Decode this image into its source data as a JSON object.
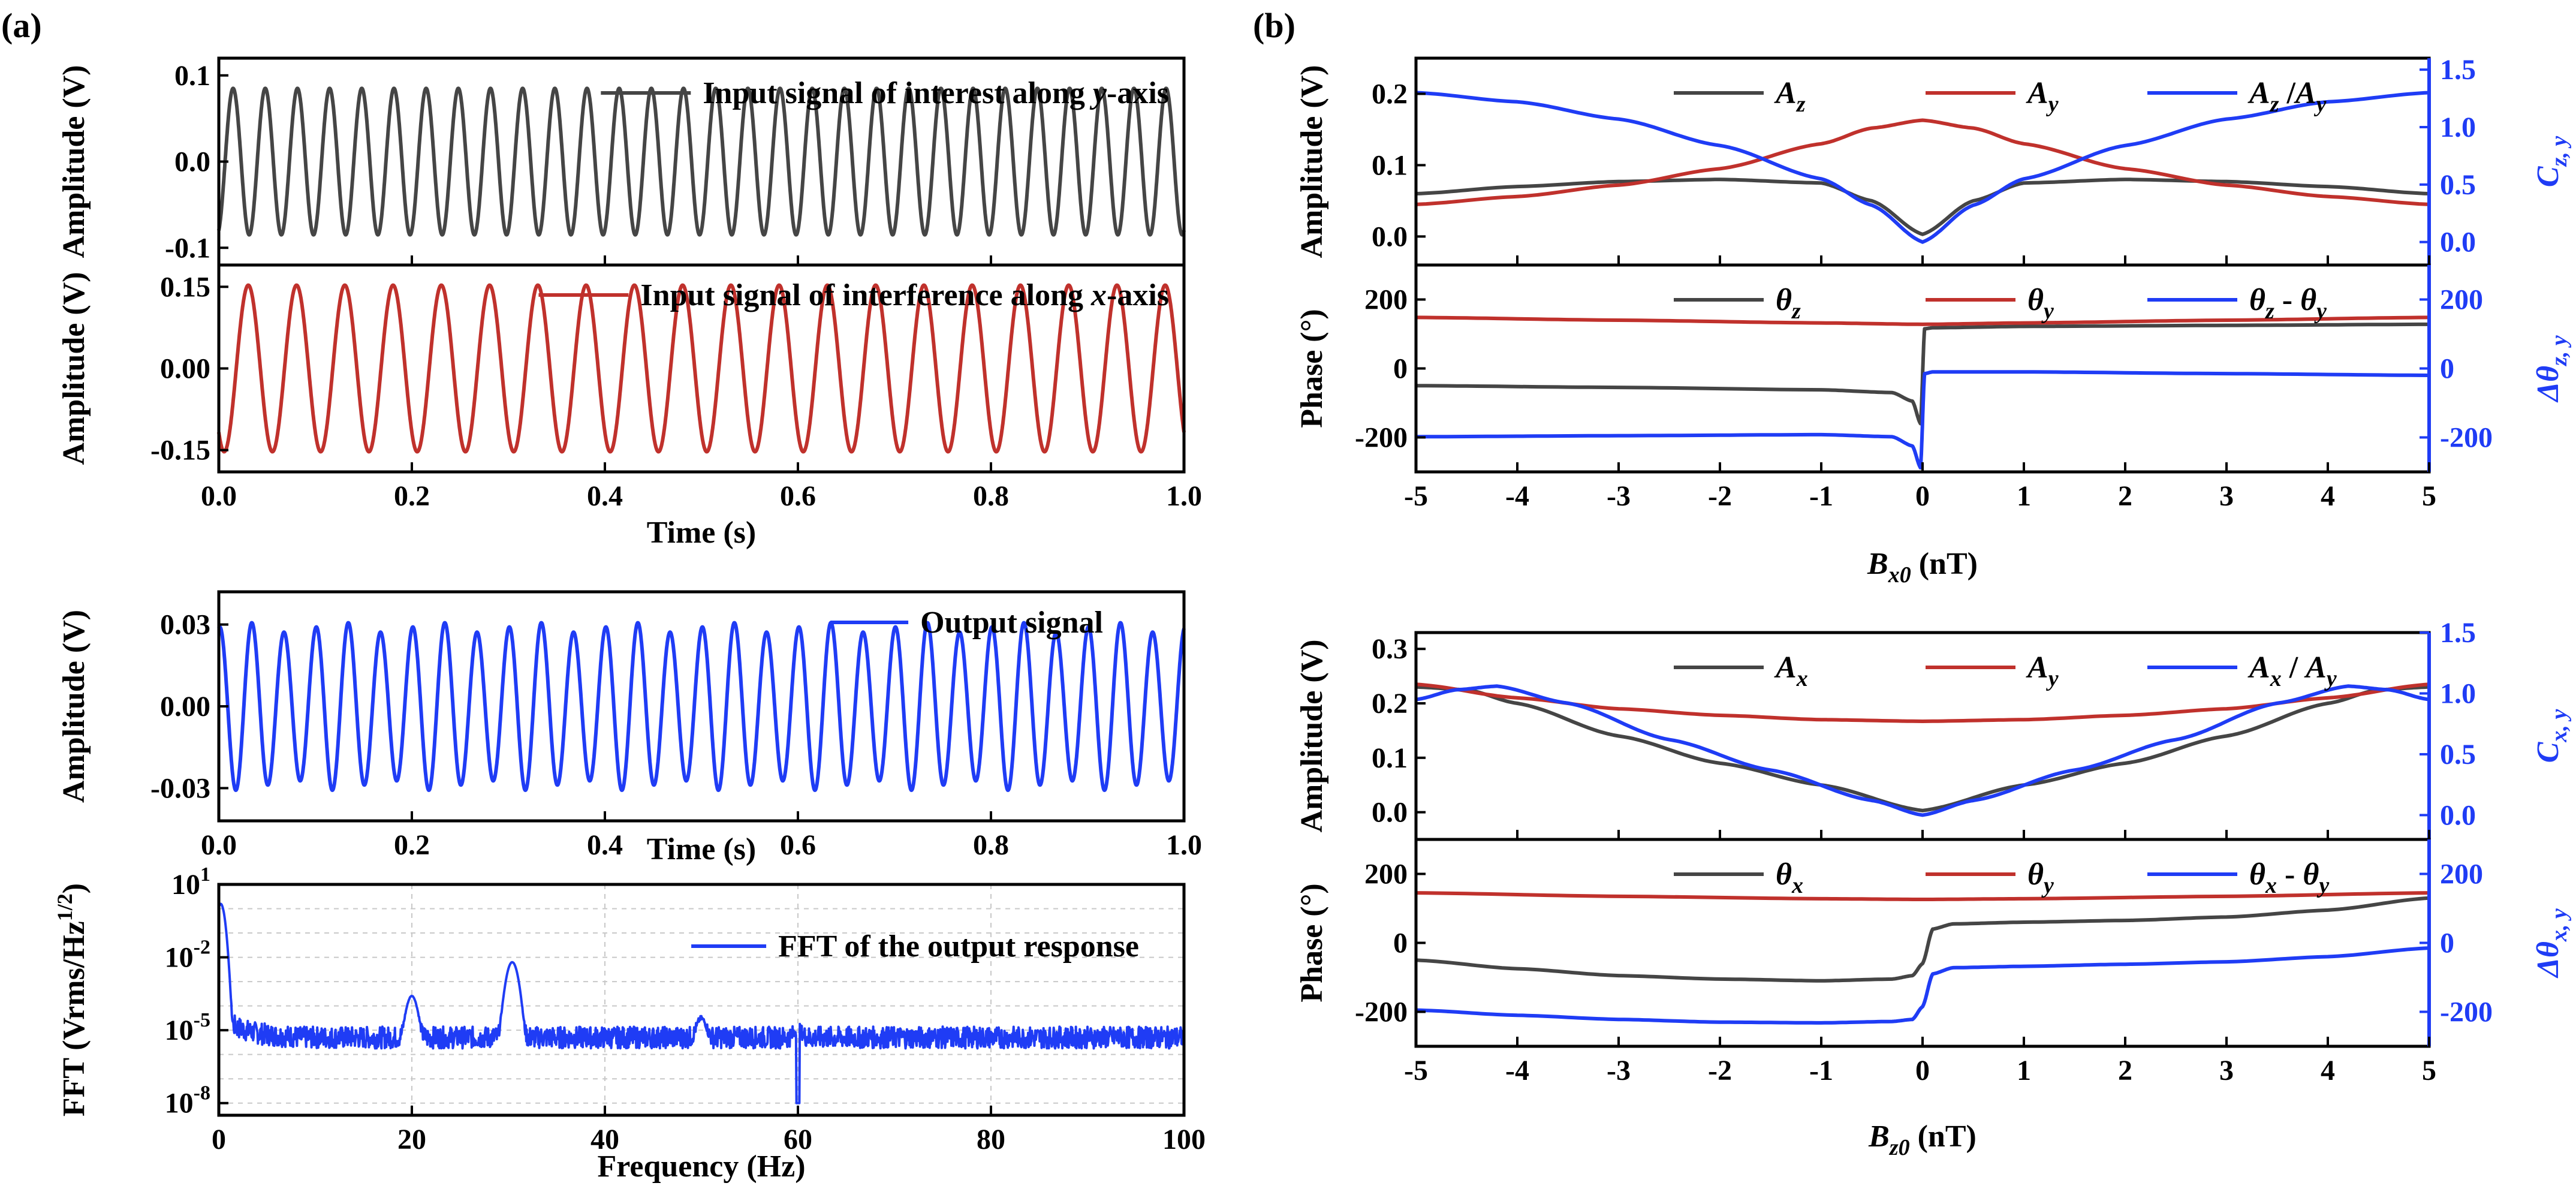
{
  "figure": {
    "panel_a_label": "(a)",
    "panel_b_label": "(b)"
  },
  "colors": {
    "black": "#454545",
    "red": "#c0312c",
    "blue": "#1f3cf5",
    "axis": "#000000",
    "grid": "#c8c8c8"
  },
  "chart_data": [
    {
      "id": "a1",
      "type": "line",
      "title": "",
      "xlabel": "",
      "ylabel": "Amplitude (V)",
      "xlim": [
        0,
        1.0
      ],
      "ylim": [
        -0.12,
        0.12
      ],
      "yticks": [
        -0.1,
        0.0,
        0.1
      ],
      "ytick_labels": [
        "-0.1",
        "0.0",
        "0.1"
      ],
      "series": [
        {
          "name": "Input signal of interest along y-axis",
          "legend_pre": "Input signal of interest along ",
          "legend_var": "y",
          "legend_post": "-axis",
          "color": "black",
          "wave": {
            "amplitude": 0.085,
            "freq_hz": 30,
            "phase_deg": -70
          }
        }
      ]
    },
    {
      "id": "a2",
      "type": "line",
      "xlabel": "Time (s)",
      "ylabel": "Amplitude (V)",
      "xlim": [
        0,
        1.0
      ],
      "ylim": [
        -0.19,
        0.19
      ],
      "xticks": [
        0.0,
        0.2,
        0.4,
        0.6,
        0.8,
        1.0
      ],
      "xtick_labels": [
        "0.0",
        "0.2",
        "0.4",
        "0.6",
        "0.8",
        "1.0"
      ],
      "yticks": [
        -0.15,
        0.0,
        0.15
      ],
      "ytick_labels": [
        "-0.15",
        "0.00",
        "0.15"
      ],
      "series": [
        {
          "name": "Input signal of interference along x-axis",
          "legend_pre": "Input signal of interference along ",
          "legend_var": "x",
          "legend_post": "-axis",
          "color": "red",
          "wave": {
            "amplitude": 0.153,
            "freq_hz": 20,
            "phase_deg": -130
          }
        }
      ]
    },
    {
      "id": "a3",
      "type": "line",
      "xlabel": "Time (s)",
      "ylabel": "Amplitude (V)",
      "xlim": [
        0,
        1.0
      ],
      "ylim": [
        -0.042,
        0.042
      ],
      "xticks": [
        0.0,
        0.2,
        0.4,
        0.6,
        0.8,
        1.0
      ],
      "xtick_labels": [
        "0.0",
        "0.2",
        "0.4",
        "0.6",
        "0.8",
        "1.0"
      ],
      "yticks": [
        -0.03,
        0.0,
        0.03
      ],
      "ytick_labels": [
        "-0.03",
        "0.00",
        "0.03"
      ],
      "series": [
        {
          "name": "Output signal",
          "legend_pre": "Output signal",
          "legend_var": "",
          "legend_post": "",
          "color": "blue",
          "wave": {
            "amplitude": 0.029,
            "freq_hz": 30,
            "phase_deg": 80,
            "mod_amplitude": 0.002,
            "mod_freq_hz": 10
          }
        }
      ]
    },
    {
      "id": "a4",
      "type": "line",
      "xlabel": "Frequency (Hz)",
      "ylabel": "FFT (Vrms/Hz1/2)",
      "yscale": "log",
      "xlim": [
        0,
        100
      ],
      "ylim_log10": [
        -8.5,
        1.0
      ],
      "xticks": [
        0,
        20,
        40,
        60,
        80,
        100
      ],
      "xtick_labels": [
        "0",
        "20",
        "40",
        "60",
        "80",
        "100"
      ],
      "ytick_exponents": [
        1,
        -2,
        -5,
        -8
      ],
      "grid": true,
      "series": [
        {
          "name": "FFT of the output response",
          "legend_pre": "FFT of the output response",
          "legend_var": "",
          "legend_post": "",
          "color": "blue",
          "noise_floor_log10": -5.3,
          "peaks": [
            {
              "freq_hz": 0.2,
              "log10_value": 0.2
            },
            {
              "freq_hz": 20,
              "log10_value": -3.6
            },
            {
              "freq_hz": 30.4,
              "log10_value": -2.2
            },
            {
              "freq_hz": 50,
              "log10_value": -4.6
            },
            {
              "freq_hz": 60,
              "log10_value": -5.3
            }
          ]
        }
      ]
    },
    {
      "id": "b1",
      "type": "line",
      "xlabel": "",
      "ylabel": "Amplitude (V)",
      "ylabel_right": "Cz,y",
      "xlim": [
        -5,
        5
      ],
      "ylim": [
        -0.04,
        0.25
      ],
      "yticks": [
        0.0,
        0.1,
        0.2
      ],
      "ytick_labels": [
        "0.0",
        "0.1",
        "0.2"
      ],
      "ylim_right": [
        -0.2,
        1.6
      ],
      "yticks_right": [
        0.0,
        0.5,
        1.0,
        1.5
      ],
      "ytick_labels_right": [
        "0.0",
        "0.5",
        "1.0",
        "1.5"
      ],
      "series": [
        {
          "name": "Az",
          "color": "black",
          "axis": "left",
          "x": [
            -5,
            -4,
            -3,
            -2,
            -1,
            -0.5,
            0,
            0.5,
            1,
            2,
            3,
            4,
            5
          ],
          "y": [
            0.06,
            0.07,
            0.077,
            0.08,
            0.075,
            0.05,
            0.003,
            0.05,
            0.075,
            0.08,
            0.077,
            0.07,
            0.06
          ]
        },
        {
          "name": "Ay",
          "color": "red",
          "axis": "left",
          "x": [
            -5,
            -4,
            -3,
            -2,
            -1,
            -0.5,
            0,
            0.5,
            1,
            2,
            3,
            4,
            5
          ],
          "y": [
            0.045,
            0.056,
            0.072,
            0.095,
            0.13,
            0.152,
            0.163,
            0.152,
            0.13,
            0.095,
            0.072,
            0.056,
            0.045
          ]
        },
        {
          "name": "Az /Ay",
          "color": "blue",
          "axis": "right",
          "x": [
            -5,
            -4,
            -3,
            -2,
            -1,
            -0.5,
            0,
            0.5,
            1,
            2,
            3,
            4,
            5
          ],
          "y": [
            1.3,
            1.22,
            1.07,
            0.84,
            0.55,
            0.32,
            0.0,
            0.32,
            0.55,
            0.84,
            1.07,
            1.22,
            1.3
          ]
        }
      ],
      "legend": [
        {
          "base": "A",
          "sub": "z",
          "color": "black"
        },
        {
          "base": "A",
          "sub": "y",
          "color": "red"
        },
        {
          "base": "A",
          "sub": "z",
          "mid": " /",
          "base2": "A",
          "sub2": "y",
          "color": "blue"
        }
      ],
      "right_label": {
        "base": "C",
        "sub": "z, y"
      }
    },
    {
      "id": "b2",
      "type": "line",
      "xlabel": "Bx0 (nT)",
      "ylabel": "Phase (°)",
      "ylabel_right": "Δθz,y",
      "xlim": [
        -5,
        5
      ],
      "ylim": [
        -300,
        300
      ],
      "yticks": [
        -200,
        0,
        200
      ],
      "ytick_labels": [
        "-200",
        "0",
        "200"
      ],
      "ylim_right": [
        -300,
        300
      ],
      "yticks_right": [
        -200,
        0,
        200
      ],
      "ytick_labels_right": [
        "-200",
        "0",
        "200"
      ],
      "xticks": [
        -5,
        -4,
        -3,
        -2,
        -1,
        0,
        1,
        2,
        3,
        4,
        5
      ],
      "xtick_labels": [
        "-5",
        "-4",
        "-3",
        "-2",
        "-1",
        "0",
        "1",
        "2",
        "3",
        "4",
        "5"
      ],
      "series": [
        {
          "name": "θz",
          "color": "black",
          "axis": "left",
          "x": [
            -5,
            -3,
            -1,
            -0.3,
            -0.1,
            -0.02,
            0.02,
            0.1,
            1,
            3,
            5
          ],
          "y": [
            -50,
            -55,
            -62,
            -70,
            -95,
            -160,
            115,
            118,
            122,
            125,
            128
          ]
        },
        {
          "name": "θy",
          "color": "red",
          "axis": "left",
          "x": [
            -5,
            -3,
            -1,
            0,
            1,
            3,
            5
          ],
          "y": [
            148,
            140,
            132,
            128,
            132,
            140,
            148
          ]
        },
        {
          "name": "θz - θy",
          "color": "blue",
          "axis": "right",
          "x": [
            -5,
            -3,
            -1,
            -0.3,
            -0.1,
            -0.02,
            0.02,
            0.1,
            1,
            3,
            5
          ],
          "y": [
            -198,
            -195,
            -192,
            -198,
            -225,
            -288,
            -15,
            -10,
            -10,
            -15,
            -20
          ]
        }
      ],
      "legend": [
        {
          "base": "θ",
          "sub": "z",
          "color": "black"
        },
        {
          "base": "θ",
          "sub": "y",
          "color": "red"
        },
        {
          "base": "θ",
          "sub": "z",
          "mid": " - ",
          "base2": "θ",
          "sub2": "y",
          "color": "blue"
        }
      ],
      "right_label": {
        "base": "Δθ",
        "sub": "z, y"
      },
      "x_label_parts": {
        "base": "B",
        "sub": "x0",
        "post": " (nT)"
      }
    },
    {
      "id": "b3",
      "type": "line",
      "xlabel": "",
      "ylabel": "Amplitude (V)",
      "ylabel_right": "Cx,y",
      "xlim": [
        -5,
        5
      ],
      "ylim": [
        -0.05,
        0.33
      ],
      "yticks": [
        0.0,
        0.1,
        0.2,
        0.3
      ],
      "ytick_labels": [
        "0.0",
        "0.1",
        "0.2",
        "0.3"
      ],
      "ylim_right": [
        -0.2,
        1.5
      ],
      "yticks_right": [
        0.0,
        0.5,
        1.0,
        1.5
      ],
      "ytick_labels_right": [
        "0.0",
        "0.5",
        "1.0",
        "1.5"
      ],
      "series": [
        {
          "name": "Ax",
          "color": "black",
          "axis": "left",
          "x": [
            -5,
            -4.5,
            -4,
            -3,
            -2,
            -1,
            0,
            1,
            2,
            3,
            4,
            4.5,
            5
          ],
          "y": [
            0.23,
            0.225,
            0.2,
            0.14,
            0.09,
            0.05,
            0.003,
            0.05,
            0.09,
            0.14,
            0.2,
            0.225,
            0.23
          ]
        },
        {
          "name": "Ay",
          "color": "red",
          "axis": "left",
          "x": [
            -5,
            -4,
            -3,
            -2,
            -1,
            0,
            1,
            2,
            3,
            4,
            5
          ],
          "y": [
            0.235,
            0.21,
            0.19,
            0.178,
            0.17,
            0.167,
            0.17,
            0.178,
            0.19,
            0.21,
            0.235
          ]
        },
        {
          "name": "Ax / Ay",
          "color": "blue",
          "axis": "right",
          "x": [
            -5,
            -4.6,
            -4.2,
            -3.5,
            -2.5,
            -1.5,
            -0.5,
            0,
            0.5,
            1.5,
            2.5,
            3.5,
            4.2,
            4.6,
            5
          ],
          "y": [
            0.95,
            1.03,
            1.06,
            0.92,
            0.62,
            0.37,
            0.12,
            0.0,
            0.12,
            0.37,
            0.62,
            0.92,
            1.06,
            1.03,
            0.95
          ]
        }
      ],
      "legend": [
        {
          "base": "A",
          "sub": "x",
          "color": "black"
        },
        {
          "base": "A",
          "sub": "y",
          "color": "red"
        },
        {
          "base": "A",
          "sub": "x",
          "mid": " / ",
          "base2": "A",
          "sub2": "y",
          "color": "blue"
        }
      ],
      "right_label": {
        "base": "C",
        "sub": "x, y"
      }
    },
    {
      "id": "b4",
      "type": "line",
      "xlabel": "Bz0 (nT)",
      "ylabel": "Phase (°)",
      "ylabel_right": "Δθx,y",
      "xlim": [
        -5,
        5
      ],
      "ylim": [
        -300,
        300
      ],
      "yticks": [
        -200,
        0,
        200
      ],
      "ytick_labels": [
        "-200",
        "0",
        "200"
      ],
      "ylim_right": [
        -300,
        300
      ],
      "yticks_right": [
        -200,
        0,
        200
      ],
      "ytick_labels_right": [
        "-200",
        "0",
        "200"
      ],
      "xticks": [
        -5,
        -4,
        -3,
        -2,
        -1,
        0,
        1,
        2,
        3,
        4,
        5
      ],
      "xtick_labels": [
        "-5",
        "-4",
        "-3",
        "-2",
        "-1",
        "0",
        "1",
        "2",
        "3",
        "4",
        "5"
      ],
      "series": [
        {
          "name": "θx",
          "color": "black",
          "axis": "left",
          "x": [
            -5,
            -4,
            -3,
            -2,
            -1,
            -0.3,
            -0.1,
            0,
            0.1,
            0.3,
            1,
            2,
            3,
            4,
            5
          ],
          "y": [
            -50,
            -75,
            -95,
            -105,
            -110,
            -105,
            -95,
            -60,
            40,
            55,
            60,
            65,
            75,
            95,
            130
          ]
        },
        {
          "name": "θy",
          "color": "red",
          "axis": "left",
          "x": [
            -5,
            -3,
            -1,
            0,
            1,
            3,
            5
          ],
          "y": [
            145,
            135,
            128,
            126,
            128,
            135,
            145
          ]
        },
        {
          "name": "θx - θy",
          "color": "blue",
          "axis": "right",
          "x": [
            -5,
            -4,
            -3,
            -2,
            -1,
            -0.3,
            -0.1,
            0,
            0.1,
            0.3,
            1,
            2,
            3,
            4,
            5
          ],
          "y": [
            -195,
            -210,
            -222,
            -230,
            -232,
            -228,
            -222,
            -185,
            -90,
            -72,
            -68,
            -62,
            -55,
            -40,
            -15
          ]
        }
      ],
      "legend": [
        {
          "base": "θ",
          "sub": "x",
          "color": "black"
        },
        {
          "base": "θ",
          "sub": "y",
          "color": "red"
        },
        {
          "base": "θ",
          "sub": "x",
          "mid": " - ",
          "base2": "θ",
          "sub2": "y",
          "color": "blue"
        }
      ],
      "right_label": {
        "base": "Δθ",
        "sub": "x, y"
      },
      "x_label_parts": {
        "base": "B",
        "sub": "z0",
        "post": " (nT)"
      }
    }
  ]
}
